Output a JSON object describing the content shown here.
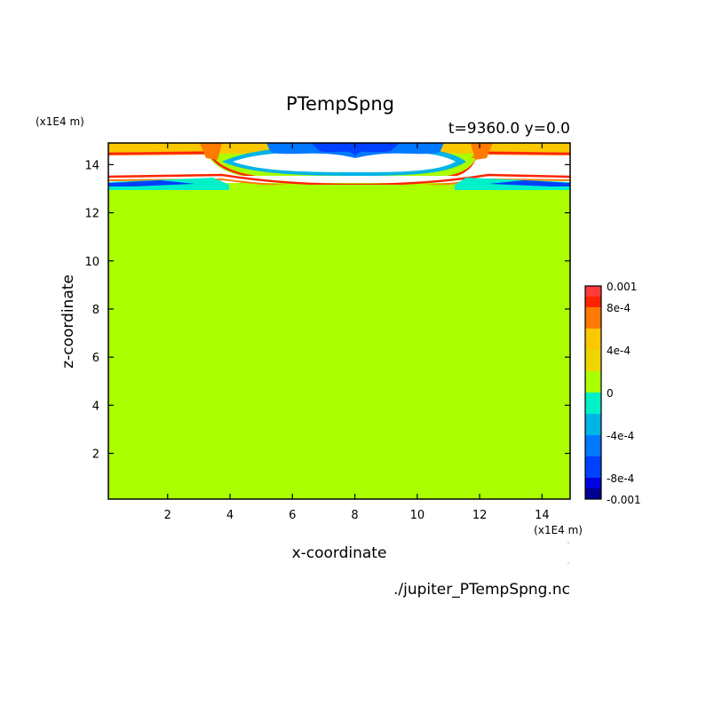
{
  "chart_data": {
    "type": "heatmap",
    "title": "PTempSpng",
    "subtitle": "t=9360.0 y=0.0",
    "xlabel": "x-coordinate",
    "ylabel": "z-coordinate",
    "x_units": "(x1E4 m)",
    "y_units": "(x1E4 m)",
    "footer": "./jupiter_PTempSpng.nc",
    "xlim": [
      0.1,
      14.9
    ],
    "ylim": [
      0.1,
      14.9
    ],
    "xticks": [
      2,
      4,
      6,
      8,
      10,
      12,
      14
    ],
    "yticks": [
      2,
      4,
      6,
      8,
      10,
      12,
      14
    ],
    "colorbar": {
      "range": [
        -0.001,
        0.001
      ],
      "tick_labels": [
        {
          "value": 0.001,
          "label": "0.001"
        },
        {
          "value": 0.0008,
          "label": "8e-4"
        },
        {
          "value": 0.0004,
          "label": "4e-4"
        },
        {
          "value": 0,
          "label": "0"
        },
        {
          "value": -0.0004,
          "label": "-4e-4"
        },
        {
          "value": -0.0008,
          "label": "-8e-4"
        },
        {
          "value": -0.001,
          "label": "-0.001"
        }
      ],
      "levels": [
        {
          "min": 0.0009,
          "max": 0.001,
          "color": "#ff3a3a"
        },
        {
          "min": 0.0008,
          "max": 0.0009,
          "color": "#ff2400"
        },
        {
          "min": 0.0006,
          "max": 0.0008,
          "color": "#ff7a00"
        },
        {
          "min": 0.0004,
          "max": 0.0006,
          "color": "#f9c800"
        },
        {
          "min": 0.0002,
          "max": 0.0004,
          "color": "#f0d400"
        },
        {
          "min": 0.0,
          "max": 0.0002,
          "color": "#aaff00"
        },
        {
          "min": -0.0002,
          "max": 0.0,
          "color": "#00f0c8"
        },
        {
          "min": -0.0004,
          "max": -0.0002,
          "color": "#00b4e6"
        },
        {
          "min": -0.0006,
          "max": -0.0004,
          "color": "#0078ff"
        },
        {
          "min": -0.0008,
          "max": -0.0006,
          "color": "#0040ff"
        },
        {
          "min": -0.0009,
          "max": -0.0008,
          "color": "#0000e0"
        },
        {
          "min": -0.001,
          "max": -0.0009,
          "color": "#000090"
        }
      ]
    },
    "field_description": "Near-zero field over most of the domain with positive/negative perturbations concentrated near the top boundary (z above ~13)."
  }
}
